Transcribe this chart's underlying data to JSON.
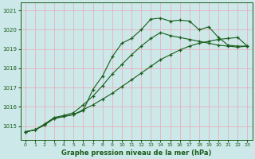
{
  "title": "Graphe pression niveau de la mer (hPa)",
  "bg_color": "#cce8e8",
  "grid_color": "#e8b0c0",
  "line_color": "#1a5c1a",
  "xlim": [
    -0.5,
    23.5
  ],
  "ylim": [
    1014.3,
    1021.4
  ],
  "yticks": [
    1015,
    1016,
    1017,
    1018,
    1019,
    1020,
    1021
  ],
  "xticks": [
    0,
    1,
    2,
    3,
    4,
    5,
    6,
    7,
    8,
    9,
    10,
    11,
    12,
    13,
    14,
    15,
    16,
    17,
    18,
    19,
    20,
    21,
    22,
    23
  ],
  "series1_x": [
    0,
    1,
    2,
    3,
    4,
    5,
    6,
    7,
    8,
    9,
    10,
    11,
    12,
    13,
    14,
    15,
    16,
    17,
    18,
    19,
    20,
    21,
    22,
    23
  ],
  "series1_y": [
    1014.7,
    1014.8,
    1015.1,
    1015.4,
    1015.5,
    1015.6,
    1015.8,
    1016.9,
    1017.6,
    1018.6,
    1019.3,
    1019.55,
    1020.0,
    1020.55,
    1020.6,
    1020.45,
    1020.5,
    1020.45,
    1020.0,
    1020.15,
    1019.6,
    1019.2,
    1019.15,
    1019.15
  ],
  "series2_x": [
    0,
    1,
    2,
    3,
    4,
    5,
    6,
    7,
    8,
    9,
    10,
    11,
    12,
    13,
    14,
    15,
    16,
    17,
    18,
    19,
    20,
    21,
    22,
    23
  ],
  "series2_y": [
    1014.7,
    1014.8,
    1015.1,
    1015.45,
    1015.55,
    1015.7,
    1016.1,
    1016.55,
    1017.1,
    1017.7,
    1018.2,
    1018.7,
    1019.15,
    1019.55,
    1019.85,
    1019.7,
    1019.6,
    1019.5,
    1019.4,
    1019.3,
    1019.2,
    1019.15,
    1019.1,
    1019.15
  ],
  "series3_x": [
    0,
    1,
    2,
    3,
    4,
    5,
    6,
    7,
    8,
    9,
    10,
    11,
    12,
    13,
    14,
    15,
    16,
    17,
    18,
    19,
    20,
    21,
    22,
    23
  ],
  "series3_y": [
    1014.7,
    1014.8,
    1015.05,
    1015.4,
    1015.5,
    1015.6,
    1015.85,
    1016.1,
    1016.4,
    1016.7,
    1017.05,
    1017.4,
    1017.75,
    1018.1,
    1018.45,
    1018.7,
    1018.95,
    1019.15,
    1019.3,
    1019.4,
    1019.5,
    1019.55,
    1019.6,
    1019.15
  ]
}
